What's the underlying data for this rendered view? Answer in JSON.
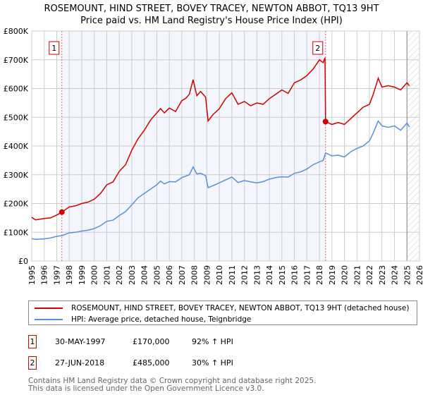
{
  "chart_data": {
    "type": "line",
    "title": "ROSEMOUNT, HIND STREET, BOVEY TRACEY, NEWTON ABBOT, TQ13 9HT",
    "subtitle": "Price paid vs. HM Land Registry's House Price Index (HPI)",
    "xlim": [
      1995,
      2026
    ],
    "ylim": [
      0,
      800000
    ],
    "x_ticks": [
      "1995",
      "1996",
      "1997",
      "1998",
      "1999",
      "2000",
      "2001",
      "2002",
      "2003",
      "2004",
      "2005",
      "2006",
      "2007",
      "2008",
      "2009",
      "2010",
      "2011",
      "2012",
      "2013",
      "2014",
      "2015",
      "2016",
      "2017",
      "2018",
      "2019",
      "2020",
      "2021",
      "2022",
      "2023",
      "2024",
      "2025",
      "2026"
    ],
    "y_ticks": [
      {
        "v": 0,
        "label": "£0"
      },
      {
        "v": 100000,
        "label": "£100K"
      },
      {
        "v": 200000,
        "label": "£200K"
      },
      {
        "v": 300000,
        "label": "£300K"
      },
      {
        "v": 400000,
        "label": "£400K"
      },
      {
        "v": 500000,
        "label": "£500K"
      },
      {
        "v": 600000,
        "label": "£600K"
      },
      {
        "v": 700000,
        "label": "£700K"
      },
      {
        "v": 800000,
        "label": "£800K"
      }
    ],
    "grid": true,
    "series": [
      {
        "name": "ROSEMOUNT, HIND STREET, BOVEY TRACEY, NEWTON ABBOT, TQ13 9HT (detached house)",
        "color": "#cc0000",
        "x": [
          1995,
          1995.3,
          1996,
          1996.5,
          1997,
          1997.41,
          1998,
          1998.5,
          1999,
          1999.5,
          2000,
          2000.5,
          2001,
          2001.5,
          2002,
          2002.5,
          2003,
          2003.5,
          2004,
          2004.5,
          2005,
          2005.3,
          2005.6,
          2006,
          2006.5,
          2007,
          2007.3,
          2007.6,
          2007.9,
          2008.2,
          2008.5,
          2008.9,
          2009.1,
          2009.5,
          2010,
          2010.5,
          2011,
          2011.5,
          2012,
          2012.5,
          2013,
          2013.5,
          2014,
          2014.5,
          2015,
          2015.5,
          2016,
          2016.5,
          2017,
          2017.5,
          2018,
          2018.3,
          2018.45,
          2018.49,
          2019,
          2019.5,
          2020,
          2020.5,
          2021,
          2021.5,
          2022,
          2022.3,
          2022.7,
          2023,
          2023.5,
          2024,
          2024.5,
          2025,
          2025.2
        ],
        "y": [
          152000,
          143000,
          148000,
          150000,
          160000,
          170000,
          188000,
          192000,
          200000,
          205000,
          215000,
          235000,
          265000,
          275000,
          312000,
          335000,
          385000,
          425000,
          455000,
          490000,
          515000,
          530000,
          515000,
          532000,
          520000,
          558000,
          565000,
          580000,
          631000,
          575000,
          590000,
          570000,
          487000,
          510000,
          530000,
          565000,
          585000,
          545000,
          555000,
          540000,
          550000,
          545000,
          565000,
          580000,
          595000,
          583000,
          620000,
          630000,
          645000,
          668000,
          700000,
          690000,
          707000,
          485000,
          475000,
          482000,
          475000,
          495000,
          515000,
          535000,
          545000,
          580000,
          636000,
          605000,
          610000,
          605000,
          595000,
          620000,
          609000
        ]
      },
      {
        "name": "HPI: Average price, detached house, Teignbridge",
        "color": "#5b8fd6",
        "x": [
          1995,
          1995.3,
          1996,
          1996.5,
          1997,
          1997.41,
          1998,
          1998.5,
          1999,
          1999.5,
          2000,
          2000.5,
          2001,
          2001.5,
          2002,
          2002.5,
          2003,
          2003.5,
          2004,
          2004.5,
          2005,
          2005.3,
          2005.6,
          2006,
          2006.5,
          2007,
          2007.3,
          2007.6,
          2007.9,
          2008.2,
          2008.5,
          2008.9,
          2009.1,
          2009.5,
          2010,
          2010.5,
          2011,
          2011.5,
          2012,
          2012.5,
          2013,
          2013.5,
          2014,
          2014.5,
          2015,
          2015.5,
          2016,
          2016.5,
          2017,
          2017.5,
          2018,
          2018.3,
          2018.49,
          2019,
          2019.5,
          2020,
          2020.5,
          2021,
          2021.5,
          2022,
          2022.3,
          2022.7,
          2023,
          2023.5,
          2024,
          2024.5,
          2025,
          2025.2
        ],
        "y": [
          78000,
          75000,
          77000,
          80000,
          86000,
          88000,
          98000,
          100000,
          104000,
          107000,
          113000,
          123000,
          138000,
          142000,
          158000,
          172000,
          195000,
          220000,
          235000,
          250000,
          265000,
          278000,
          268000,
          276000,
          275000,
          290000,
          295000,
          300000,
          327000,
          303000,
          305000,
          297000,
          255000,
          262000,
          272000,
          282000,
          292000,
          273000,
          280000,
          275000,
          272000,
          276000,
          285000,
          290000,
          293000,
          292000,
          305000,
          310000,
          320000,
          335000,
          345000,
          350000,
          376000,
          366000,
          368000,
          362000,
          380000,
          392000,
          400000,
          418000,
          445000,
          487000,
          470000,
          465000,
          470000,
          455000,
          480000,
          466000
        ]
      }
    ],
    "sales": [
      {
        "n": "1",
        "x": 1997.41,
        "y": 170000
      },
      {
        "n": "2",
        "x": 2018.49,
        "y": 485000
      }
    ],
    "shaded_region": [
      1997.41,
      2018.49
    ],
    "hatched_from": 2025.0
  },
  "legend": [
    {
      "label": "ROSEMOUNT, HIND STREET, BOVEY TRACEY, NEWTON ABBOT, TQ13 9HT (detached house)",
      "color": "#cc0000"
    },
    {
      "label": "HPI: Average price, detached house, Teignbridge",
      "color": "#5b8fd6"
    }
  ],
  "transactions": [
    {
      "n": "1",
      "date": "30-MAY-1997",
      "price": "£170,000",
      "hpi": "92% ↑ HPI"
    },
    {
      "n": "2",
      "date": "27-JUN-2018",
      "price": "£485,000",
      "hpi": "30% ↑ HPI"
    }
  ],
  "footer": [
    "Contains HM Land Registry data © Crown copyright and database right 2025.",
    "This data is licensed under the Open Government Licence v3.0."
  ]
}
